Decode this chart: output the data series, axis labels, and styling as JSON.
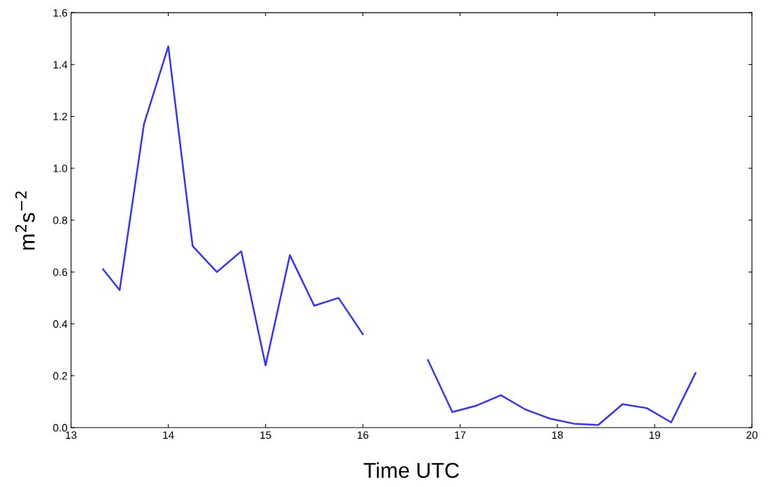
{
  "chart_data": {
    "type": "line",
    "xlabel": "Time UTC",
    "ylabel": "m$^{2}$s$^{−2}$",
    "x": [
      13.33,
      13.5,
      13.75,
      14.0,
      14.25,
      14.5,
      14.75,
      15.0,
      15.25,
      15.5,
      15.75,
      16.0,
      16.33,
      16.67,
      16.92,
      17.17,
      17.42,
      17.67,
      17.92,
      18.17,
      18.42,
      18.67,
      18.92,
      19.17,
      19.42
    ],
    "series": [
      {
        "color": "#3333ff",
        "values": [
          0.61,
          0.53,
          1.17,
          1.47,
          0.7,
          0.6,
          0.68,
          0.24,
          0.665,
          0.47,
          0.5,
          0.36,
          null,
          0.26,
          0.06,
          0.085,
          0.125,
          0.07,
          0.035,
          0.015,
          0.01,
          0.09,
          0.075,
          0.02,
          0.21
        ]
      }
    ],
    "xlim": [
      13,
      20
    ],
    "xticks": [
      13,
      14,
      15,
      16,
      17,
      18,
      19,
      20
    ],
    "ylim": [
      0,
      1.6
    ],
    "yticks": [
      {
        "value": 0,
        "label": "0.0"
      },
      0.2,
      0.4,
      0.6,
      0.8,
      {
        "value": 1,
        "label": "1.0"
      },
      1.2,
      1.4,
      1.6
    ],
    "grid": false,
    "legend": false,
    "marker": "none",
    "line_style": "solid"
  }
}
